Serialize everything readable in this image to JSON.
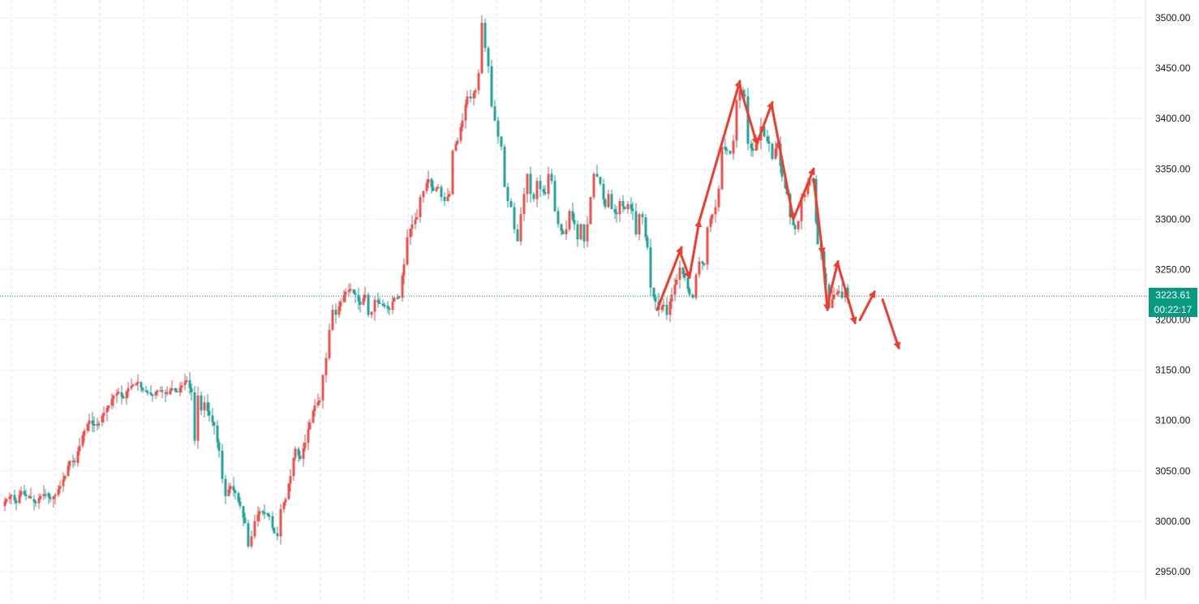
{
  "colors": {
    "up": "#ef5350",
    "down": "#26a69a",
    "badge": "#089981",
    "grid_h": "#f0f3fa",
    "grid_v": "#e0e3eb",
    "price_line": "#089981",
    "annotation": "#f23b2d",
    "axis_text": "#131722",
    "badge_text": "#ffffff"
  },
  "price_badge": {
    "price": "3223.61",
    "countdown": "00:22:17"
  },
  "chart_data": {
    "type": "candlestick",
    "y_axis": {
      "position": "right",
      "range": [
        2940,
        3510
      ],
      "ticks": [
        "3500.00",
        "3450.00",
        "3400.00",
        "3350.00",
        "3300.00",
        "3250.00",
        "3200.00",
        "3150.00",
        "3100.00",
        "3050.00",
        "3000.00",
        "2950.00"
      ]
    },
    "last_price": 3223.61,
    "grid": true,
    "path": [
      [
        0,
        3015
      ],
      [
        6,
        3022
      ],
      [
        12,
        3026
      ],
      [
        18,
        3018
      ],
      [
        24,
        3030
      ],
      [
        30,
        3025
      ],
      [
        36,
        3022
      ],
      [
        42,
        3018
      ],
      [
        48,
        3025
      ],
      [
        54,
        3028
      ],
      [
        60,
        3022
      ],
      [
        66,
        3026
      ],
      [
        72,
        3035
      ],
      [
        78,
        3045
      ],
      [
        84,
        3060
      ],
      [
        90,
        3058
      ],
      [
        96,
        3075
      ],
      [
        102,
        3090
      ],
      [
        108,
        3100
      ],
      [
        114,
        3095
      ],
      [
        120,
        3098
      ],
      [
        126,
        3108
      ],
      [
        132,
        3115
      ],
      [
        138,
        3125
      ],
      [
        144,
        3128
      ],
      [
        150,
        3122
      ],
      [
        156,
        3132
      ],
      [
        162,
        3135
      ],
      [
        168,
        3138
      ],
      [
        174,
        3130
      ],
      [
        180,
        3128
      ],
      [
        186,
        3125
      ],
      [
        192,
        3130
      ],
      [
        198,
        3128
      ],
      [
        204,
        3126
      ],
      [
        210,
        3132
      ],
      [
        216,
        3128
      ],
      [
        222,
        3135
      ],
      [
        228,
        3140
      ],
      [
        234,
        3128
      ],
      [
        238,
        3080
      ],
      [
        242,
        3125
      ],
      [
        246,
        3110
      ],
      [
        250,
        3118
      ],
      [
        256,
        3105
      ],
      [
        262,
        3095
      ],
      [
        268,
        3070
      ],
      [
        272,
        3042
      ],
      [
        276,
        3025
      ],
      [
        282,
        3035
      ],
      [
        288,
        3028
      ],
      [
        294,
        3015
      ],
      [
        300,
        2998
      ],
      [
        304,
        2975
      ],
      [
        308,
        2985
      ],
      [
        312,
        3000
      ],
      [
        318,
        3010
      ],
      [
        324,
        3008
      ],
      [
        330,
        3005
      ],
      [
        336,
        2988
      ],
      [
        340,
        2985
      ],
      [
        344,
        3012
      ],
      [
        350,
        3022
      ],
      [
        356,
        3045
      ],
      [
        362,
        3072
      ],
      [
        368,
        3062
      ],
      [
        374,
        3078
      ],
      [
        380,
        3098
      ],
      [
        386,
        3115
      ],
      [
        392,
        3120
      ],
      [
        396,
        3145
      ],
      [
        400,
        3162
      ],
      [
        404,
        3190
      ],
      [
        408,
        3210
      ],
      [
        412,
        3205
      ],
      [
        418,
        3218
      ],
      [
        424,
        3228
      ],
      [
        430,
        3230
      ],
      [
        436,
        3225
      ],
      [
        442,
        3215
      ],
      [
        448,
        3225
      ],
      [
        452,
        3205
      ],
      [
        456,
        3208
      ],
      [
        460,
        3220
      ],
      [
        466,
        3216
      ],
      [
        472,
        3214
      ],
      [
        478,
        3210
      ],
      [
        484,
        3222
      ],
      [
        490,
        3222
      ],
      [
        496,
        3255
      ],
      [
        500,
        3282
      ],
      [
        506,
        3295
      ],
      [
        512,
        3302
      ],
      [
        516,
        3322
      ],
      [
        520,
        3328
      ],
      [
        526,
        3340
      ],
      [
        532,
        3328
      ],
      [
        538,
        3332
      ],
      [
        542,
        3322
      ],
      [
        546,
        3318
      ],
      [
        552,
        3325
      ],
      [
        556,
        3368
      ],
      [
        562,
        3378
      ],
      [
        568,
        3398
      ],
      [
        574,
        3422
      ],
      [
        578,
        3420
      ],
      [
        584,
        3428
      ],
      [
        588,
        3445
      ],
      [
        592,
        3495
      ],
      [
        596,
        3470
      ],
      [
        600,
        3452
      ],
      [
        604,
        3412
      ],
      [
        608,
        3398
      ],
      [
        612,
        3382
      ],
      [
        616,
        3372
      ],
      [
        620,
        3332
      ],
      [
        624,
        3318
      ],
      [
        628,
        3312
      ],
      [
        632,
        3290
      ],
      [
        636,
        3278
      ],
      [
        640,
        3305
      ],
      [
        644,
        3325
      ],
      [
        648,
        3345
      ],
      [
        652,
        3325
      ],
      [
        656,
        3320
      ],
      [
        660,
        3338
      ],
      [
        664,
        3330
      ],
      [
        670,
        3325
      ],
      [
        674,
        3345
      ],
      [
        678,
        3338
      ],
      [
        682,
        3308
      ],
      [
        686,
        3295
      ],
      [
        692,
        3285
      ],
      [
        696,
        3290
      ],
      [
        700,
        3308
      ],
      [
        706,
        3295
      ],
      [
        710,
        3280
      ],
      [
        714,
        3295
      ],
      [
        718,
        3278
      ],
      [
        722,
        3295
      ],
      [
        726,
        3322
      ],
      [
        730,
        3345
      ],
      [
        734,
        3342
      ],
      [
        738,
        3335
      ],
      [
        744,
        3312
      ],
      [
        748,
        3325
      ],
      [
        752,
        3310
      ],
      [
        758,
        3305
      ],
      [
        762,
        3318
      ],
      [
        768,
        3310
      ],
      [
        772,
        3315
      ],
      [
        778,
        3308
      ],
      [
        782,
        3285
      ],
      [
        786,
        3305
      ],
      [
        790,
        3302
      ],
      [
        796,
        3272
      ],
      [
        800,
        3232
      ],
      [
        806,
        3218
      ],
      [
        810,
        3210
      ],
      [
        816,
        3215
      ],
      [
        820,
        3205
      ],
      [
        826,
        3225
      ],
      [
        832,
        3240
      ],
      [
        836,
        3252
      ],
      [
        842,
        3242
      ],
      [
        848,
        3225
      ],
      [
        852,
        3222
      ],
      [
        856,
        3245
      ],
      [
        860,
        3258
      ],
      [
        866,
        3255
      ],
      [
        870,
        3292
      ],
      [
        876,
        3305
      ],
      [
        880,
        3312
      ],
      [
        884,
        3330
      ],
      [
        888,
        3372
      ],
      [
        894,
        3368
      ],
      [
        898,
        3365
      ],
      [
        902,
        3378
      ],
      [
        906,
        3418
      ],
      [
        910,
        3428
      ],
      [
        916,
        3422
      ],
      [
        920,
        3375
      ],
      [
        926,
        3368
      ],
      [
        932,
        3378
      ],
      [
        936,
        3392
      ],
      [
        940,
        3382
      ],
      [
        946,
        3375
      ],
      [
        950,
        3360
      ],
      [
        956,
        3375
      ],
      [
        962,
        3342
      ],
      [
        968,
        3325
      ],
      [
        972,
        3302
      ],
      [
        978,
        3290
      ],
      [
        982,
        3298
      ],
      [
        986,
        3322
      ],
      [
        990,
        3325
      ],
      [
        996,
        3338
      ],
      [
        1000,
        3340
      ],
      [
        1006,
        3275
      ],
      [
        1010,
        3268
      ],
      [
        1016,
        3235
      ],
      [
        1020,
        3212
      ],
      [
        1026,
        3225
      ],
      [
        1032,
        3228
      ],
      [
        1036,
        3222
      ],
      [
        1040,
        3232
      ],
      [
        1043,
        3223.61
      ]
    ]
  },
  "annotations": [
    {
      "from": [
        810,
        3210
      ],
      "to": [
        840,
        3272
      ]
    },
    {
      "from": [
        838,
        3268
      ],
      "to": [
        850,
        3242
      ]
    },
    {
      "from": [
        850,
        3243
      ],
      "to": [
        862,
        3298
      ]
    },
    {
      "from": [
        862,
        3298
      ],
      "to": [
        912,
        3437
      ]
    },
    {
      "from": [
        912,
        3432
      ],
      "to": [
        933,
        3375
      ]
    },
    {
      "from": [
        933,
        3375
      ],
      "to": [
        952,
        3416
      ]
    },
    {
      "from": [
        952,
        3410
      ],
      "to": [
        978,
        3300
      ]
    },
    {
      "from": [
        978,
        3300
      ],
      "to": [
        1003,
        3350
      ]
    },
    {
      "from": [
        1003,
        3340
      ],
      "to": [
        1014,
        3266
      ]
    },
    {
      "from": [
        1014,
        3266
      ],
      "to": [
        1020,
        3210
      ]
    },
    {
      "from": [
        1020,
        3215
      ],
      "to": [
        1033,
        3258
      ]
    },
    {
      "from": [
        1033,
        3255
      ],
      "to": [
        1054,
        3197
      ]
    },
    {
      "from": [
        1060,
        3200
      ],
      "to": [
        1078,
        3228
      ]
    },
    {
      "from": [
        1088,
        3220
      ],
      "to": [
        1108,
        3172
      ]
    }
  ]
}
